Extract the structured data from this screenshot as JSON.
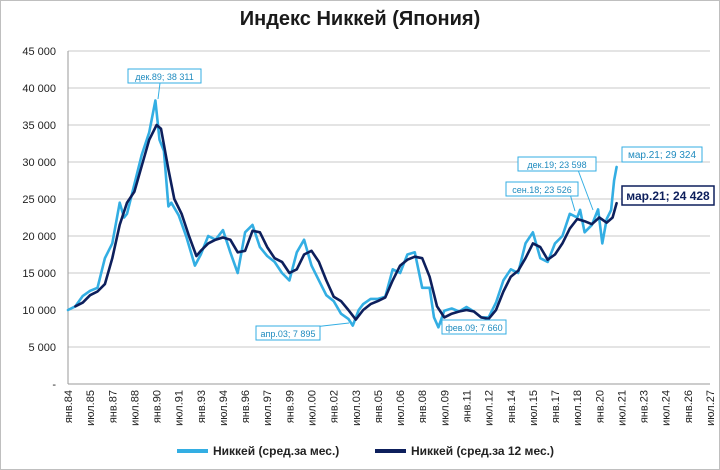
{
  "chart_data": {
    "type": "line",
    "title": "Индекс Никкей (Япония)",
    "ylim": [
      0,
      45000
    ],
    "yticks": [
      "-",
      "5 000",
      "10 000",
      "15 000",
      "20 000",
      "25 000",
      "30 000",
      "35 000",
      "40 000",
      "45 000"
    ],
    "xlim": [
      1984.0,
      2027.5
    ],
    "xticks": [
      "янв.84",
      "июл.85",
      "янв.87",
      "июл.88",
      "янв.90",
      "июл.91",
      "янв.93",
      "июл.94",
      "янв.96",
      "июл.97",
      "янв.99",
      "июл.00",
      "янв.02",
      "июл.03",
      "янв.05",
      "июл.06",
      "янв.08",
      "июл.09",
      "янв.11",
      "июл.12",
      "янв.14",
      "июл.15",
      "янв.17",
      "июл.18",
      "янв.20",
      "июл.21",
      "янв.23",
      "июл.24",
      "янв.26",
      "июл.27"
    ],
    "grid": true,
    "legend_position": "bottom",
    "colors": {
      "monthly": "#33aee3",
      "avg12": "#0d1f5c"
    },
    "series": [
      {
        "name": "Никкей (сред.за мес.)",
        "x": [
          1984.0,
          1984.5,
          1985.0,
          1985.5,
          1986.0,
          1986.5,
          1987.0,
          1987.5,
          1987.8,
          1988.0,
          1988.5,
          1989.0,
          1989.5,
          1989.92,
          1990.2,
          1990.5,
          1990.8,
          1991.0,
          1991.5,
          1992.0,
          1992.6,
          1993.0,
          1993.5,
          1994.0,
          1994.5,
          1995.0,
          1995.5,
          1996.0,
          1996.5,
          1997.0,
          1997.5,
          1998.0,
          1998.5,
          1999.0,
          1999.5,
          2000.0,
          2000.5,
          2001.0,
          2001.5,
          2002.0,
          2002.5,
          2003.0,
          2003.3,
          2003.7,
          2004.0,
          2004.5,
          2005.0,
          2005.5,
          2006.0,
          2006.5,
          2007.0,
          2007.5,
          2008.0,
          2008.5,
          2008.8,
          2009.1,
          2009.5,
          2010.0,
          2010.5,
          2011.0,
          2011.5,
          2012.0,
          2012.5,
          2013.0,
          2013.5,
          2014.0,
          2014.5,
          2015.0,
          2015.5,
          2016.0,
          2016.5,
          2017.0,
          2017.5,
          2018.0,
          2018.5,
          2018.7,
          2019.0,
          2019.5,
          2019.92,
          2020.2,
          2020.5,
          2020.8,
          2021.0,
          2021.17
        ],
        "values": [
          10000,
          10500,
          11900,
          12600,
          13000,
          17000,
          19000,
          24500,
          22500,
          23000,
          27000,
          31000,
          34000,
          38311,
          33000,
          31500,
          24000,
          24500,
          22800,
          20000,
          16000,
          17500,
          20000,
          19500,
          20800,
          17800,
          15000,
          20500,
          21500,
          18500,
          17300,
          16500,
          15000,
          14000,
          17800,
          19500,
          16000,
          14000,
          12000,
          11200,
          9500,
          8800,
          7895,
          10000,
          10800,
          11500,
          11500,
          11800,
          15500,
          15000,
          17500,
          17800,
          13000,
          13000,
          9000,
          7660,
          9900,
          10200,
          9800,
          10400,
          9800,
          9000,
          9000,
          11000,
          14000,
          15500,
          15000,
          19000,
          20500,
          17000,
          16500,
          19000,
          20000,
          23000,
          22500,
          23526,
          20500,
          21500,
          23598,
          19000,
          22300,
          23500,
          27500,
          29324
        ],
        "annotations": [
          {
            "label": "дек.89",
            "value": "38 311"
          },
          {
            "label": "апр.03",
            "value": "7 895"
          },
          {
            "label": "фев.09",
            "value": "7 660"
          },
          {
            "label": "сен.18",
            "value": "23 526"
          },
          {
            "label": "дек.19",
            "value": "23 598"
          },
          {
            "label": "мар.21",
            "value": "29 324"
          }
        ]
      },
      {
        "name": "Никкей (сред.за 12 мес.)",
        "x": [
          1984.5,
          1985.0,
          1985.5,
          1986.0,
          1986.5,
          1987.0,
          1987.5,
          1988.0,
          1988.5,
          1989.0,
          1989.5,
          1990.0,
          1990.3,
          1990.8,
          1991.2,
          1991.7,
          1992.2,
          1992.7,
          1993.0,
          1993.5,
          1994.0,
          1994.5,
          1995.0,
          1995.5,
          1996.0,
          1996.5,
          1997.0,
          1997.5,
          1998.0,
          1998.5,
          1999.0,
          1999.5,
          2000.0,
          2000.5,
          2001.0,
          2001.5,
          2002.0,
          2002.5,
          2003.0,
          2003.5,
          2004.0,
          2004.5,
          2005.0,
          2005.5,
          2006.0,
          2006.5,
          2007.0,
          2007.5,
          2008.0,
          2008.5,
          2009.0,
          2009.5,
          2010.0,
          2010.5,
          2011.0,
          2011.5,
          2012.0,
          2012.5,
          2013.0,
          2013.5,
          2014.0,
          2014.5,
          2015.0,
          2015.5,
          2016.0,
          2016.5,
          2017.0,
          2017.5,
          2018.0,
          2018.5,
          2019.0,
          2019.5,
          2020.0,
          2020.5,
          2020.9,
          2021.17
        ],
        "values": [
          10500,
          11000,
          12000,
          12500,
          13500,
          17000,
          21500,
          24500,
          26000,
          29500,
          33000,
          35000,
          34500,
          29000,
          25000,
          23000,
          20000,
          17300,
          18000,
          19000,
          19500,
          19800,
          19500,
          17800,
          18000,
          20700,
          20500,
          18500,
          17000,
          16500,
          15000,
          15500,
          17500,
          18000,
          16500,
          14000,
          11800,
          11200,
          10000,
          8700,
          10000,
          10800,
          11200,
          11700,
          14000,
          16000,
          16800,
          17200,
          17000,
          14500,
          10500,
          9000,
          9500,
          9800,
          10000,
          9800,
          9000,
          8800,
          10000,
          12500,
          14500,
          15300,
          17000,
          19000,
          18500,
          16800,
          17500,
          19000,
          21000,
          22300,
          22000,
          21600,
          22500,
          21800,
          22500,
          24428
        ],
        "annotations": [
          {
            "label": "мар.21",
            "value": "24 428"
          }
        ]
      }
    ]
  },
  "texts": {
    "ann_dec89": "дек.89;  38 311",
    "ann_apr03": "апр.03;  7 895",
    "ann_feb09": "фев.09;  7 660",
    "ann_sep18": "сен.18;  23 526",
    "ann_dec19": "дек.19;  23 598",
    "ann_mar21": "мар.21;  29 324",
    "ann_mar21_avg": "мар.21;  24 428"
  }
}
